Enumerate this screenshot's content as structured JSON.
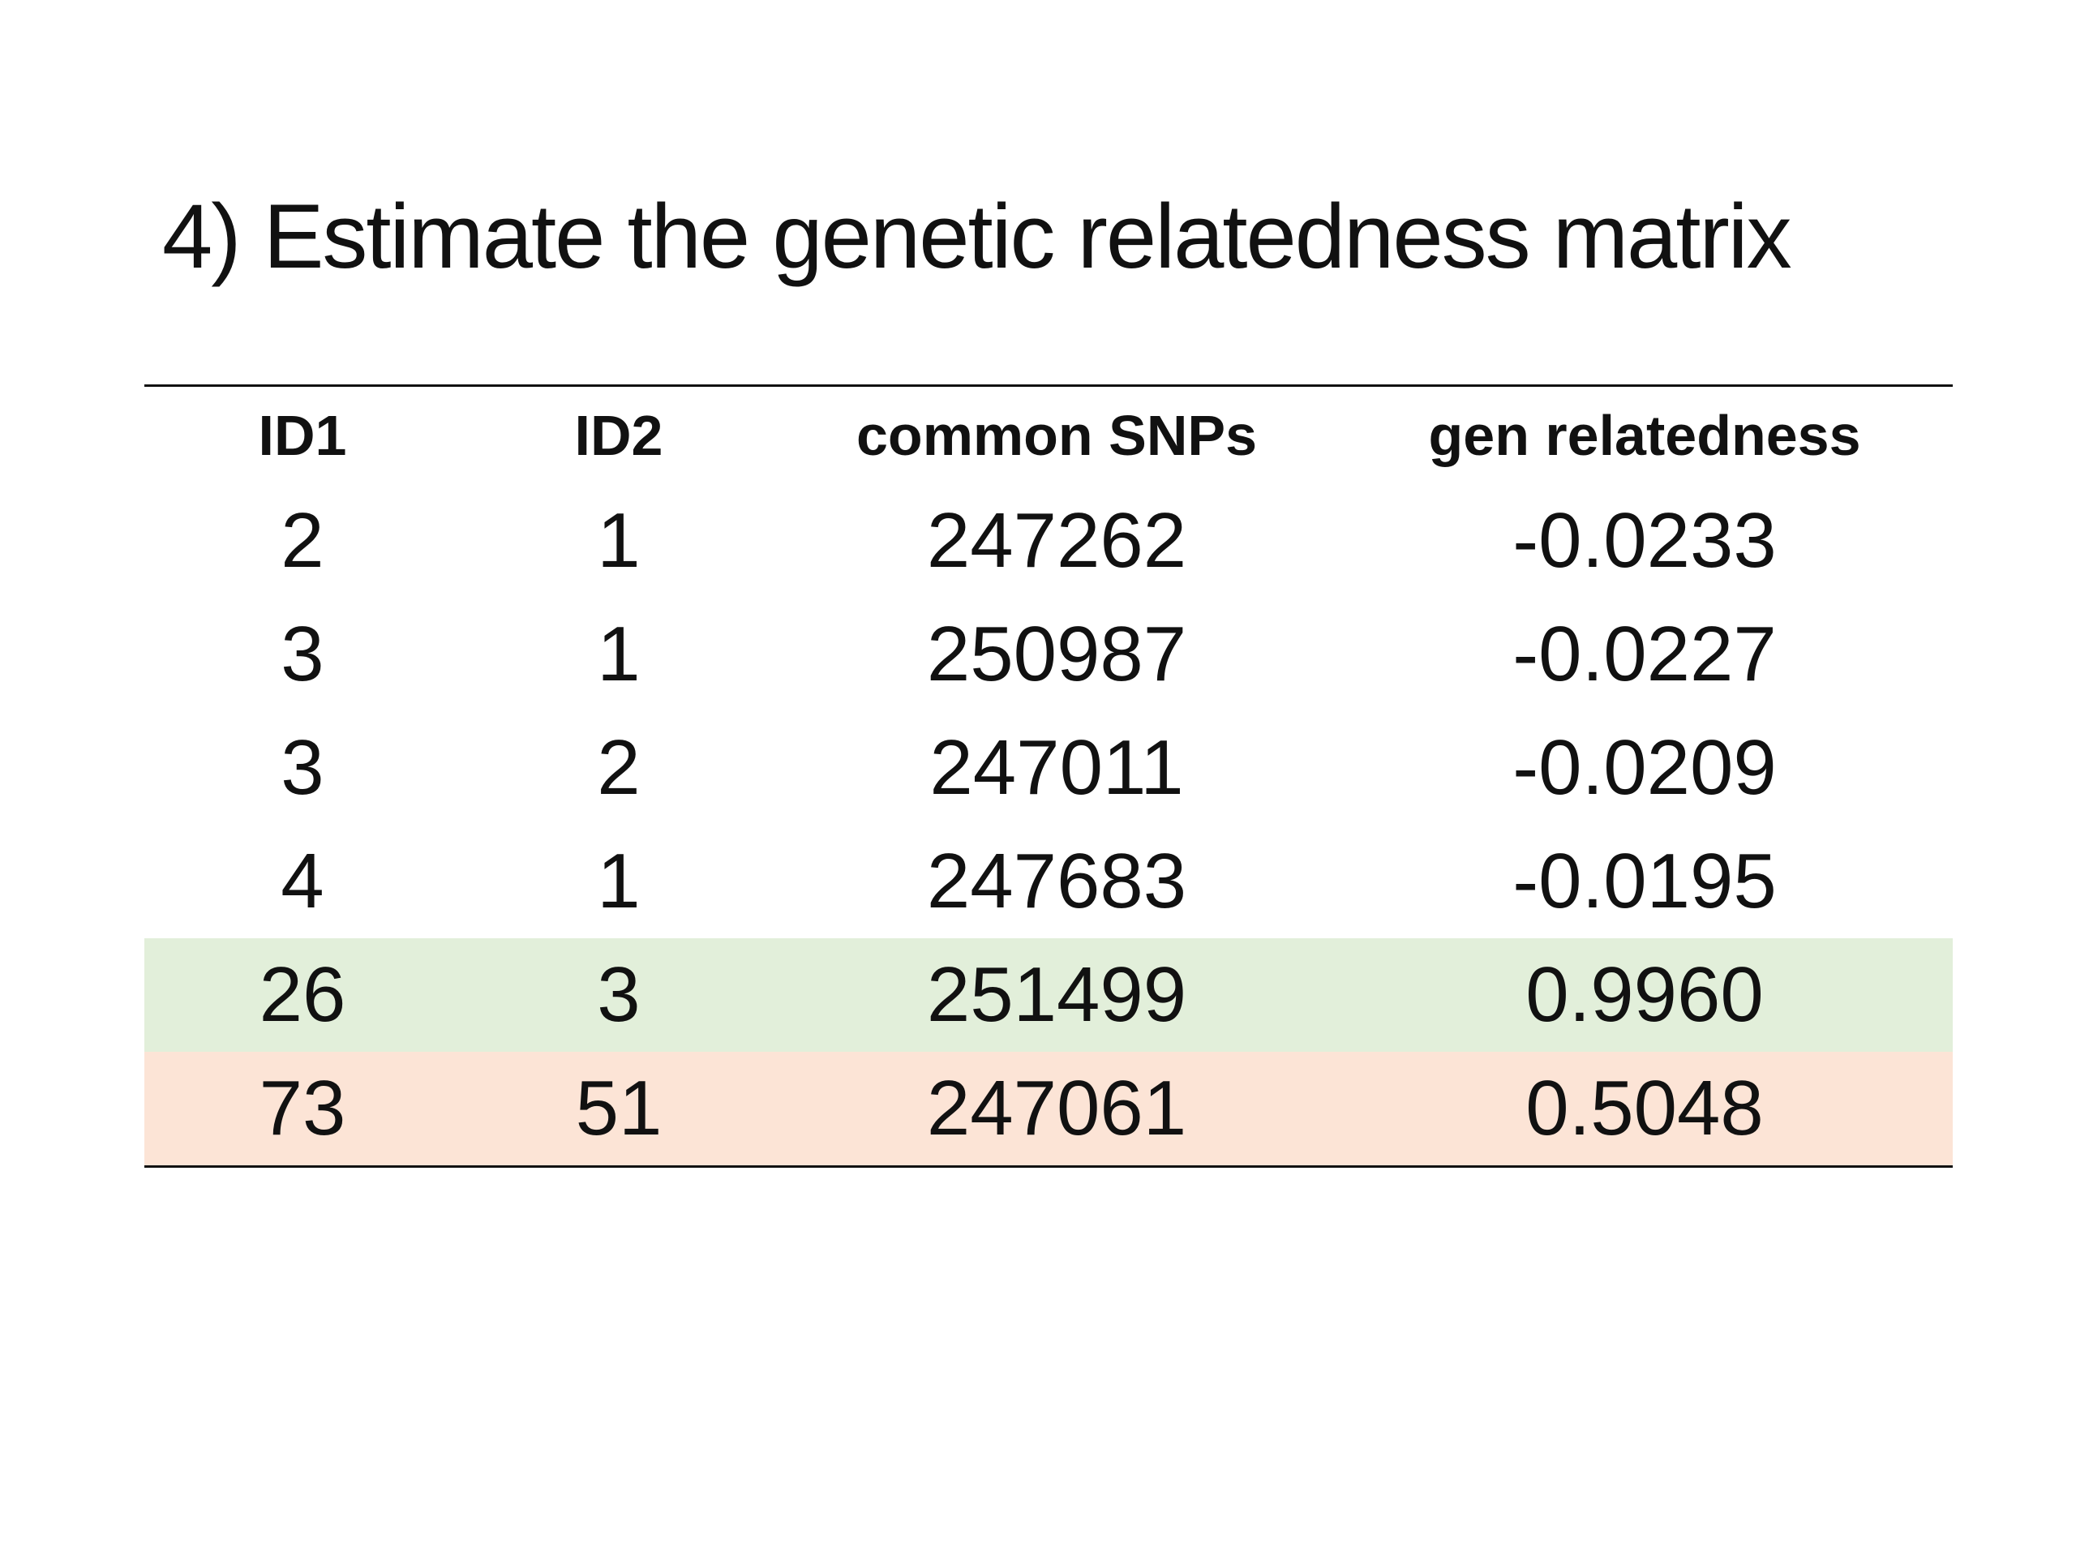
{
  "slide": {
    "title": "4) Estimate the genetic relatedness matrix"
  },
  "table": {
    "headers": [
      "ID1",
      "ID2",
      "common SNPs",
      "gen relatedness"
    ],
    "rows": [
      {
        "cells": [
          "2",
          "1",
          "247262",
          "-0.0233"
        ],
        "highlight": "none"
      },
      {
        "cells": [
          "3",
          "1",
          "250987",
          "-0.0227"
        ],
        "highlight": "none"
      },
      {
        "cells": [
          "3",
          "2",
          "247011",
          "-0.0209"
        ],
        "highlight": "none"
      },
      {
        "cells": [
          "4",
          "1",
          "247683",
          "-0.0195"
        ],
        "highlight": "none"
      },
      {
        "cells": [
          "26",
          "3",
          "251499",
          "0.9960"
        ],
        "highlight": "green"
      },
      {
        "cells": [
          "73",
          "51",
          "247061",
          "0.5048"
        ],
        "highlight": "orange"
      }
    ],
    "highlight_colors": {
      "green": "#e2efda",
      "orange": "#fce4d6"
    }
  }
}
